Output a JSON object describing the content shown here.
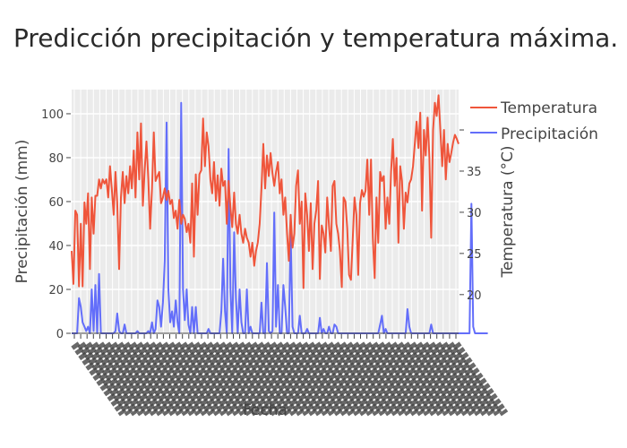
{
  "chart_data": {
    "type": "line",
    "title": "Predicción precipitación y temperatura máxima.",
    "xlabel": "Fecha",
    "ylabel": "Precipitación (mm)",
    "y2label": "Temperatura (°C)",
    "ylim": [
      0,
      111
    ],
    "y2lim": [
      15.3,
      44.9
    ],
    "yticks": [
      0,
      20,
      40,
      60,
      80,
      100
    ],
    "y2ticks": [
      20,
      25,
      30,
      35,
      40
    ],
    "y2tick_labels": [
      "20",
      "25",
      "30",
      "35",
      ""
    ],
    "x_tick_count": 61,
    "x_tick_label_note": "overlapping rotated date labels, illegible",
    "grid": true,
    "legend_position": "top-right",
    "series": [
      {
        "name": "Temperatura",
        "axis": "y2",
        "color": "#EF553B",
        "values": [
          25.3,
          21.3,
          30.2,
          29.7,
          21.0,
          28.6,
          21.0,
          31.2,
          28.6,
          32.3,
          23.1,
          31.8,
          27.4,
          32.0,
          32.0,
          34.0,
          32.9,
          34.0,
          33.5,
          34.0,
          31.8,
          35.6,
          32.9,
          29.7,
          34.9,
          31.1,
          23.1,
          31.8,
          34.9,
          31.1,
          34.4,
          32.3,
          35.6,
          32.9,
          37.5,
          31.8,
          39.7,
          34.0,
          40.8,
          30.8,
          35.1,
          38.6,
          34.0,
          28.0,
          32.9,
          39.7,
          33.8,
          34.4,
          34.9,
          31.1,
          31.8,
          32.9,
          31.5,
          32.6,
          31.0,
          31.5,
          29.3,
          30.2,
          28.0,
          31.5,
          28.6,
          29.7,
          29.2,
          27.6,
          28.6,
          26.3,
          33.5,
          24.6,
          34.6,
          29.7,
          34.6,
          35.1,
          41.4,
          35.6,
          39.7,
          38.0,
          34.0,
          32.3,
          36.1,
          31.4,
          34.5,
          30.8,
          35.3,
          33.2,
          33.8,
          28.6,
          33.8,
          30.5,
          28.2,
          32.4,
          28.6,
          27.4,
          29.7,
          27.4,
          26.3,
          28.0,
          26.9,
          26.3,
          24.6,
          26.3,
          23.5,
          25.3,
          26.3,
          28.6,
          32.9,
          38.3,
          32.9,
          36.9,
          34.4,
          37.2,
          34.7,
          33.2,
          34.9,
          36.1,
          32.3,
          34.0,
          29.7,
          31.8,
          27.4,
          24.1,
          29.7,
          25.7,
          27.4,
          33.2,
          35.1,
          28.6,
          31.3,
          20.8,
          32.3,
          29.7,
          25.3,
          31.1,
          23.1,
          28.6,
          30.3,
          33.8,
          21.9,
          28.4,
          27.4,
          25.1,
          31.8,
          28.4,
          25.3,
          33.2,
          33.8,
          28.6,
          27.4,
          25.3,
          20.9,
          31.8,
          31.3,
          28.0,
          22.4,
          21.8,
          26.7,
          31.8,
          29.7,
          22.4,
          31.1,
          32.7,
          31.9,
          32.6,
          36.4,
          29.7,
          36.4,
          27.0,
          22.0,
          31.8,
          26.3,
          34.9,
          33.8,
          34.4,
          28.0,
          31.8,
          28.6,
          34.9,
          38.9,
          33.2,
          36.6,
          26.3,
          35.6,
          33.8,
          28.0,
          32.4,
          31.2,
          33.5,
          34.0,
          35.6,
          38.3,
          41.0,
          37.8,
          42.1,
          30.2,
          40.0,
          36.9,
          41.5,
          36.6,
          26.9,
          40.0,
          43.3,
          41.7,
          44.2,
          40.0,
          35.6,
          40.0,
          34.0,
          38.3,
          36.1,
          37.2,
          38.5,
          39.4,
          38.9,
          38.3
        ]
      },
      {
        "name": "Precipitación",
        "axis": "y",
        "color": "#636EFA",
        "values": [
          0,
          0,
          0,
          0,
          16,
          12,
          5,
          3,
          1,
          3,
          0,
          20,
          1,
          22,
          0,
          27,
          0,
          0,
          0,
          0,
          0,
          0,
          0,
          0,
          1,
          9,
          1,
          0,
          0,
          4,
          0,
          0,
          0,
          0,
          0,
          0,
          1,
          0,
          0,
          0,
          0,
          0,
          1,
          0,
          5,
          0,
          2,
          15,
          12,
          3,
          14,
          33,
          96,
          20,
          5,
          10,
          3,
          15,
          5,
          0,
          105,
          20,
          6,
          20,
          4,
          0,
          12,
          0,
          12,
          0,
          0,
          0,
          0,
          0,
          0,
          2,
          0,
          0,
          0,
          0,
          0,
          0,
          10,
          34,
          10,
          0,
          84,
          20,
          0,
          46,
          16,
          0,
          20,
          5,
          0,
          0,
          20,
          0,
          3,
          0,
          0,
          0,
          0,
          0,
          14,
          0,
          0,
          32,
          1,
          0,
          1,
          55,
          3,
          22,
          0,
          0,
          22,
          12,
          0,
          0,
          46,
          3,
          0,
          0,
          0,
          8,
          0,
          0,
          0,
          2,
          0,
          0,
          0,
          0,
          0,
          0,
          7,
          0,
          2,
          0,
          0,
          3,
          0,
          0,
          4,
          3,
          0,
          0,
          0,
          0,
          0,
          0,
          0,
          0,
          0,
          0,
          0,
          0,
          0,
          0,
          0,
          0,
          0,
          0,
          0,
          0,
          0,
          0,
          0,
          4,
          8,
          0,
          2,
          0,
          0,
          0,
          0,
          0,
          0,
          0,
          0,
          0,
          0,
          0,
          11,
          3,
          0,
          0,
          0,
          0,
          0,
          0,
          0,
          0,
          0,
          0,
          0,
          4,
          0,
          0,
          0,
          0,
          0,
          0,
          0,
          0,
          0,
          0,
          0,
          0,
          0,
          0,
          0,
          0,
          0,
          0,
          0,
          0,
          0,
          59,
          3,
          0,
          0,
          0,
          0,
          0,
          0,
          0,
          0
        ]
      }
    ]
  }
}
